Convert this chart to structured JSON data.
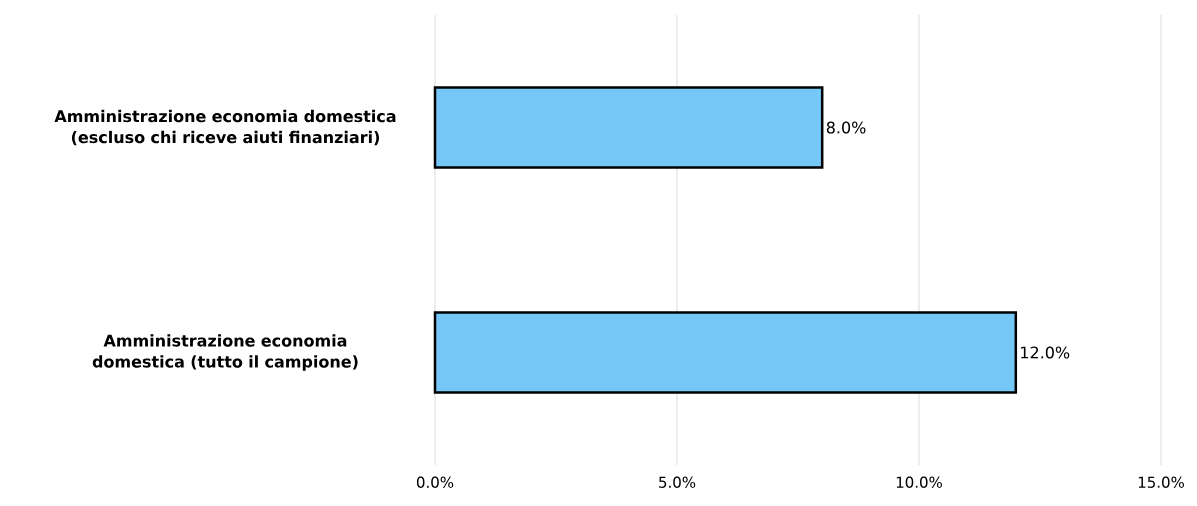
{
  "chart_data": {
    "type": "bar",
    "orientation": "horizontal",
    "categories": [
      "Amministrazione economia domestica (escluso chi riceve aiuti finanziari)",
      "Amministrazione economia domestica (tutto il campione)"
    ],
    "values": [
      8.0,
      12.0
    ],
    "value_labels": [
      "8.0%",
      "12.0%"
    ],
    "color": "#75c7f8",
    "xlim": [
      0,
      15
    ],
    "xticks": [
      {
        "value": 0,
        "label": "0.0%"
      },
      {
        "value": 5,
        "label": "5.0%"
      },
      {
        "value": 10,
        "label": "10.0%"
      },
      {
        "value": 15,
        "label": "15.0%"
      }
    ],
    "grid": "x"
  }
}
